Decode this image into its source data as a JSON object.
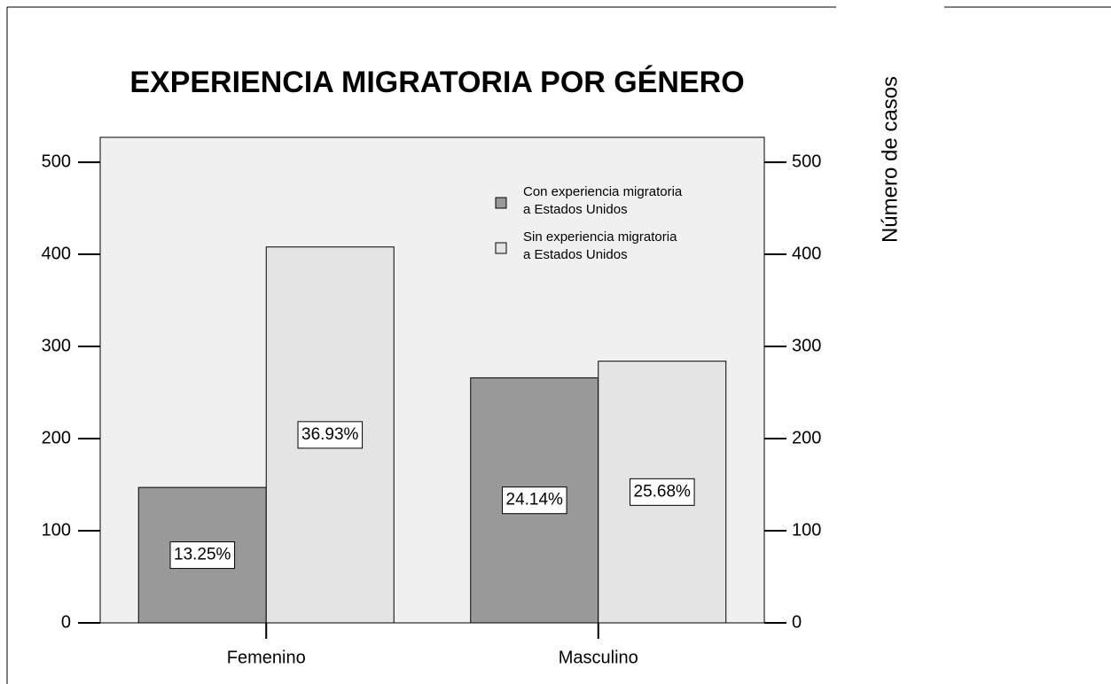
{
  "chart_data": {
    "type": "bar",
    "title": "EXPERIENCIA MIGRATORIA POR GÉNERO",
    "y_axis_label": "Número de casos",
    "categories": [
      "Femenino",
      "Masculino"
    ],
    "series": [
      {
        "name": "Con experiencia migratoria\na Estados Unidos",
        "color": "#999999",
        "values": [
          147,
          266
        ],
        "share_labels": [
          "13.25%",
          "24.14%"
        ]
      },
      {
        "name": "Sin experiencia migratoria\na Estados Unidos",
        "color": "#e4e4e4",
        "values": [
          408,
          284
        ],
        "share_labels": [
          "36.93%",
          "25.68%"
        ]
      }
    ],
    "ylim": [
      0,
      527
    ],
    "yticks": [
      0,
      100,
      200,
      300,
      400,
      500
    ],
    "plot_background": "#f0f0f0"
  }
}
